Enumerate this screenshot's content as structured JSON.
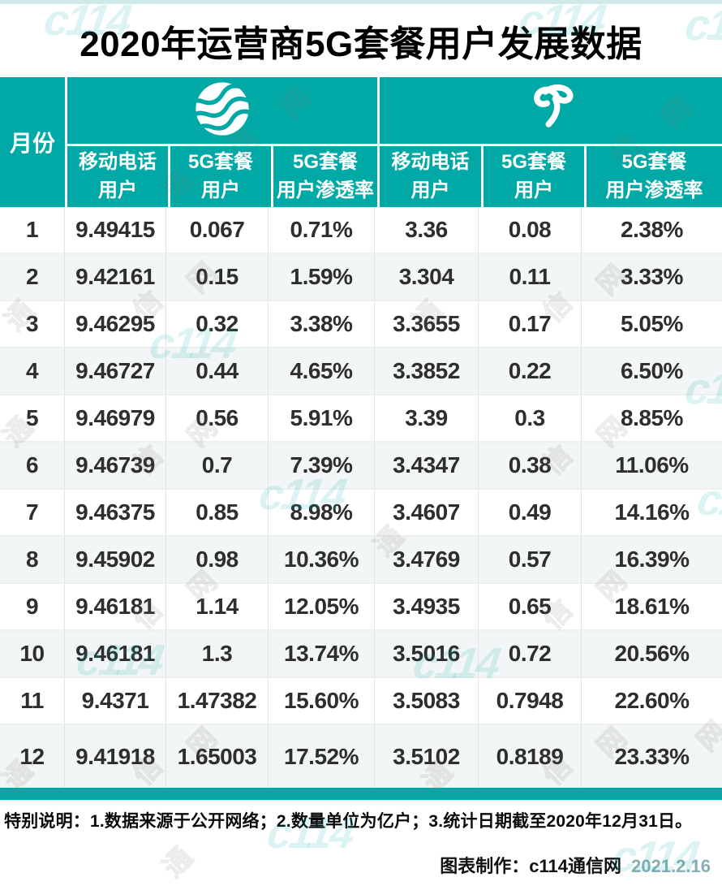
{
  "page": {
    "title": "2020年运营商5G套餐用户发展数据"
  },
  "table": {
    "month_header": "月份",
    "carriers": [
      {
        "id": "china-mobile",
        "logo": "china-mobile-logo"
      },
      {
        "id": "china-telecom",
        "logo": "china-telecom-logo"
      }
    ],
    "sub_headers": [
      "移动电话\n用户",
      "5G套餐\n用户",
      "5G套餐\n用户渗透率",
      "移动电话\n用户",
      "5G套餐\n用户",
      "5G套餐\n用户渗透率"
    ],
    "rows": [
      {
        "month": "1",
        "values": [
          "9.49415",
          "0.067",
          "0.71%",
          "3.36",
          "0.08",
          "2.38%"
        ]
      },
      {
        "month": "2",
        "values": [
          "9.42161",
          "0.15",
          "1.59%",
          "3.304",
          "0.11",
          "3.33%"
        ]
      },
      {
        "month": "3",
        "values": [
          "9.46295",
          "0.32",
          "3.38%",
          "3.3655",
          "0.17",
          "5.05%"
        ]
      },
      {
        "month": "4",
        "values": [
          "9.46727",
          "0.44",
          "4.65%",
          "3.3852",
          "0.22",
          "6.50%"
        ]
      },
      {
        "month": "5",
        "values": [
          "9.46979",
          "0.56",
          "5.91%",
          "3.39",
          "0.3",
          "8.85%"
        ]
      },
      {
        "month": "6",
        "values": [
          "9.46739",
          "0.7",
          "7.39%",
          "3.4347",
          "0.38",
          "11.06%"
        ]
      },
      {
        "month": "7",
        "values": [
          "9.46375",
          "0.85",
          "8.98%",
          "3.4607",
          "0.49",
          "14.16%"
        ]
      },
      {
        "month": "8",
        "values": [
          "9.45902",
          "0.98",
          "10.36%",
          "3.4769",
          "0.57",
          "16.39%"
        ]
      },
      {
        "month": "9",
        "values": [
          "9.46181",
          "1.14",
          "12.05%",
          "3.4935",
          "0.65",
          "18.61%"
        ]
      },
      {
        "month": "10",
        "values": [
          "9.46181",
          "1.3",
          "13.74%",
          "3.5016",
          "0.72",
          "20.56%"
        ]
      },
      {
        "month": "11",
        "values": [
          "9.4371",
          "1.47382",
          "15.60%",
          "3.5083",
          "0.7948",
          "22.60%"
        ]
      },
      {
        "month": "12",
        "values": [
          "9.41918",
          "1.65003",
          "17.52%",
          "3.5102",
          "0.8189",
          "23.33%"
        ]
      }
    ]
  },
  "footer": {
    "note": "特别说明：1.数据来源于公开网络；2.数量单位为亿户；3.统计日期截至2020年12月31日。",
    "credit": "图表制作：c114通信网",
    "date": "2021.2.16"
  },
  "watermark": {
    "logo_text": "c114",
    "chars": [
      "网",
      "信",
      "通"
    ]
  },
  "colors": {
    "teal": "#00a9a6",
    "row_alt": "#f3f6f6",
    "bottom_bar": "#0ba6a3",
    "text_dark": "#2e2e2e"
  },
  "chart_data": {
    "type": "table",
    "title": "2020年运营商5G套餐用户发展数据",
    "unit": "亿户",
    "column_groups": [
      "月份",
      "中国移动",
      "中国电信"
    ],
    "columns": [
      "月份",
      "中国移动-移动电话用户",
      "中国移动-5G套餐用户",
      "中国移动-5G套餐用户渗透率",
      "中国电信-移动电话用户",
      "中国电信-5G套餐用户",
      "中国电信-5G套餐用户渗透率"
    ],
    "rows": [
      [
        1,
        9.49415,
        0.067,
        "0.71%",
        3.36,
        0.08,
        "2.38%"
      ],
      [
        2,
        9.42161,
        0.15,
        "1.59%",
        3.304,
        0.11,
        "3.33%"
      ],
      [
        3,
        9.46295,
        0.32,
        "3.38%",
        3.3655,
        0.17,
        "5.05%"
      ],
      [
        4,
        9.46727,
        0.44,
        "4.65%",
        3.3852,
        0.22,
        "6.50%"
      ],
      [
        5,
        9.46979,
        0.56,
        "5.91%",
        3.39,
        0.3,
        "8.85%"
      ],
      [
        6,
        9.46739,
        0.7,
        "7.39%",
        3.4347,
        0.38,
        "11.06%"
      ],
      [
        7,
        9.46375,
        0.85,
        "8.98%",
        3.4607,
        0.49,
        "14.16%"
      ],
      [
        8,
        9.45902,
        0.98,
        "10.36%",
        3.4769,
        0.57,
        "16.39%"
      ],
      [
        9,
        9.46181,
        1.14,
        "12.05%",
        3.4935,
        0.65,
        "18.61%"
      ],
      [
        10,
        9.46181,
        1.3,
        "13.74%",
        3.5016,
        0.72,
        "20.56%"
      ],
      [
        11,
        9.4371,
        1.47382,
        "15.60%",
        3.5083,
        0.7948,
        "22.60%"
      ],
      [
        12,
        9.41918,
        1.65003,
        "17.52%",
        3.5102,
        0.8189,
        "23.33%"
      ]
    ]
  }
}
